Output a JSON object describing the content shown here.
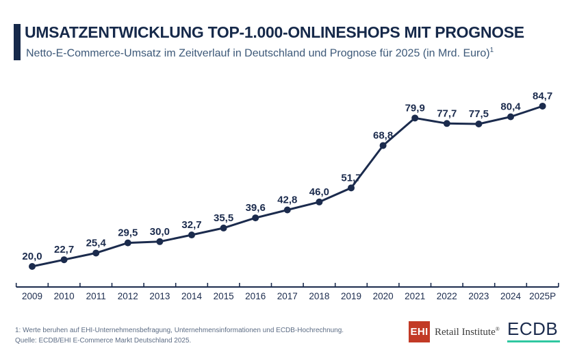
{
  "header": {
    "title": "UMSATZENTWICKLUNG TOP-1.000-ONLINESHOPS MIT PROGNOSE",
    "subtitle": "Netto-E-Commerce-Umsatz im Zeitverlauf in Deutschland und Prognose für 2025 (in Mrd. Euro)",
    "subtitle_sup": "1",
    "accent_color": "#16294a"
  },
  "chart_data": {
    "type": "line",
    "title": "Umsatzentwicklung Top-1.000-Onlineshops mit Prognose",
    "subtitle": "Netto-E-Commerce-Umsatz im Zeitverlauf in Deutschland und Prognose für 2025",
    "unit": "Mrd. Euro",
    "categories": [
      "2009",
      "2010",
      "2011",
      "2012",
      "2013",
      "2014",
      "2015",
      "2016",
      "2017",
      "2018",
      "2019",
      "2020",
      "2021",
      "2022",
      "2023",
      "2024",
      "2025P"
    ],
    "values": [
      20.0,
      22.7,
      25.4,
      29.5,
      30.0,
      32.7,
      35.5,
      39.6,
      42.8,
      46.0,
      51.7,
      68.8,
      79.9,
      77.7,
      77.5,
      80.4,
      84.7
    ],
    "value_label_decimal_separator": ",",
    "forecast_category": "2025P",
    "xlabel": "",
    "ylabel": "",
    "ylim": [
      11.7,
      97
    ],
    "grid": false,
    "y_axis_visible": false,
    "legend": null,
    "line_color": "#1b2b4d",
    "marker_color": "#1b2b4d",
    "label_color": "#1b2b4d",
    "axis_color": "#1b2b4d"
  },
  "footer": {
    "footnote_line1": "1: Werte beruhen auf EHI-Unternehmensbefragung, Unternehmensinformationen und ECDB-Hochrechnung.",
    "footnote_line2": "Quelle: ECDB/EHI E-Commerce Markt Deutschland 2025.",
    "logos": {
      "ehi": {
        "box_text": "EHI",
        "text": "Retail Institute",
        "registered": "®",
        "box_color": "#c23a26"
      },
      "ecdb": {
        "text": "ECDB",
        "underline_color": "#2fc7a0"
      }
    }
  }
}
